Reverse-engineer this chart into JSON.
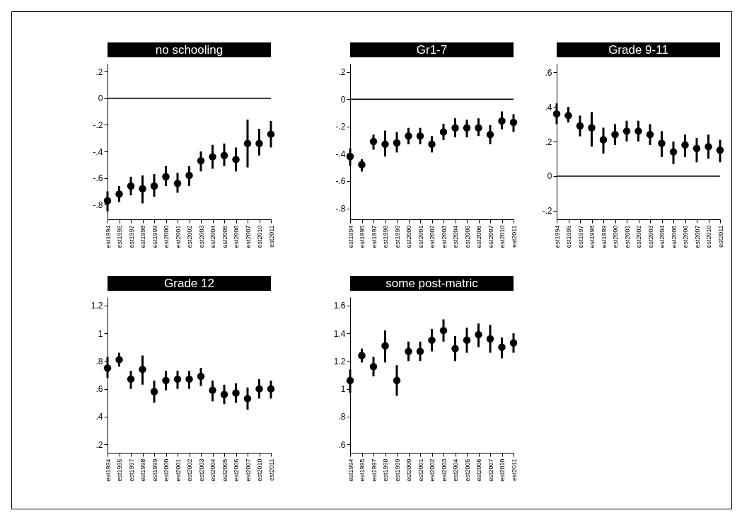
{
  "chart_data": [
    {
      "type": "scatter",
      "title": "no schooling",
      "color": "#000000",
      "marker": "circle",
      "categories": [
        "est1994",
        "est1995",
        "est1997",
        "est1998",
        "est1999",
        "est2000",
        "est2001",
        "est2002",
        "est2003",
        "est2004",
        "est2005",
        "est2006",
        "est2007",
        "est2010",
        "est2011"
      ],
      "values": [
        -0.77,
        -0.72,
        -0.66,
        -0.68,
        -0.66,
        -0.59,
        -0.64,
        -0.58,
        -0.47,
        -0.44,
        -0.43,
        -0.46,
        -0.34,
        -0.34,
        -0.27
      ],
      "errors": [
        [
          -0.85,
          -0.7
        ],
        [
          -0.78,
          -0.66
        ],
        [
          -0.73,
          -0.59
        ],
        [
          -0.79,
          -0.58
        ],
        [
          -0.74,
          -0.57
        ],
        [
          -0.66,
          -0.51
        ],
        [
          -0.71,
          -0.56
        ],
        [
          -0.66,
          -0.51
        ],
        [
          -0.55,
          -0.4
        ],
        [
          -0.53,
          -0.35
        ],
        [
          -0.51,
          -0.34
        ],
        [
          -0.55,
          -0.37
        ],
        [
          -0.52,
          -0.16
        ],
        [
          -0.43,
          -0.23
        ],
        [
          -0.37,
          -0.17
        ]
      ],
      "ylim": [
        -0.91,
        0.26
      ],
      "yticks": [
        {
          "value": -0.8,
          "label": "-.8"
        },
        {
          "value": -0.6,
          "label": "-.6"
        },
        {
          "value": -0.4,
          "label": "-.4"
        },
        {
          "value": -0.2,
          "label": "-.2"
        },
        {
          "value": 0,
          "label": "0"
        },
        {
          "value": 0.2,
          "label": ".2"
        }
      ],
      "ref_lines": [
        {
          "axis": "y",
          "value": 0,
          "color": "#000000"
        }
      ]
    },
    {
      "type": "scatter",
      "title": "Gr1-7",
      "color": "#000000",
      "marker": "circle",
      "categories": [
        "est1994",
        "est1995",
        "est1997",
        "est1998",
        "est1999",
        "est2000",
        "est2001",
        "est2002",
        "est2003",
        "est2004",
        "est2005",
        "est2006",
        "est2007",
        "est2010",
        "est2011"
      ],
      "values": [
        -0.42,
        -0.48,
        -0.31,
        -0.33,
        -0.32,
        -0.27,
        -0.27,
        -0.33,
        -0.24,
        -0.21,
        -0.21,
        -0.21,
        -0.26,
        -0.16,
        -0.17
      ],
      "errors": [
        [
          -0.49,
          -0.36
        ],
        [
          -0.53,
          -0.44
        ],
        [
          -0.37,
          -0.26
        ],
        [
          -0.42,
          -0.23
        ],
        [
          -0.39,
          -0.24
        ],
        [
          -0.33,
          -0.21
        ],
        [
          -0.33,
          -0.21
        ],
        [
          -0.39,
          -0.27
        ],
        [
          -0.3,
          -0.18
        ],
        [
          -0.28,
          -0.14
        ],
        [
          -0.28,
          -0.15
        ],
        [
          -0.27,
          -0.14
        ],
        [
          -0.33,
          -0.19
        ],
        [
          -0.22,
          -0.09
        ],
        [
          -0.24,
          -0.11
        ]
      ],
      "ylim": [
        -0.88,
        0.26
      ],
      "yticks": [
        {
          "value": -0.8,
          "label": "-.8"
        },
        {
          "value": -0.6,
          "label": "-.6"
        },
        {
          "value": -0.4,
          "label": "-.4"
        },
        {
          "value": -0.2,
          "label": "-.2"
        },
        {
          "value": 0,
          "label": "0"
        },
        {
          "value": 0.2,
          "label": ".2"
        }
      ],
      "ref_lines": [
        {
          "axis": "y",
          "value": 0,
          "color": "#000000"
        }
      ]
    },
    {
      "type": "scatter",
      "title": "Grade 9-11",
      "color": "#000000",
      "marker": "circle",
      "categories": [
        "est1994",
        "est1995",
        "est1997",
        "est1998",
        "est1999",
        "est2000",
        "est2001",
        "est2002",
        "est2003",
        "est2004",
        "est2005",
        "est2006",
        "est2007",
        "est2010",
        "est2011"
      ],
      "values": [
        0.36,
        0.35,
        0.29,
        0.28,
        0.21,
        0.24,
        0.26,
        0.26,
        0.24,
        0.19,
        0.14,
        0.18,
        0.16,
        0.17,
        0.15
      ],
      "errors": [
        [
          0.3,
          0.42
        ],
        [
          0.31,
          0.4
        ],
        [
          0.23,
          0.35
        ],
        [
          0.17,
          0.37
        ],
        [
          0.13,
          0.28
        ],
        [
          0.18,
          0.3
        ],
        [
          0.2,
          0.32
        ],
        [
          0.2,
          0.32
        ],
        [
          0.18,
          0.3
        ],
        [
          0.11,
          0.26
        ],
        [
          0.07,
          0.2
        ],
        [
          0.11,
          0.24
        ],
        [
          0.08,
          0.22
        ],
        [
          0.1,
          0.24
        ],
        [
          0.08,
          0.21
        ]
      ],
      "ylim": [
        -0.25,
        0.65
      ],
      "yticks": [
        {
          "value": -0.2,
          "label": "-.2"
        },
        {
          "value": 0,
          "label": "0"
        },
        {
          "value": 0.2,
          "label": ".2"
        },
        {
          "value": 0.4,
          "label": ".4"
        },
        {
          "value": 0.6,
          "label": ".6"
        }
      ],
      "ref_lines": [
        {
          "axis": "y",
          "value": 0,
          "color": "#000000"
        }
      ]
    },
    {
      "type": "scatter",
      "title": "Grade 12",
      "color": "#000000",
      "marker": "circle",
      "categories": [
        "est1994",
        "est1995",
        "est1997",
        "est1998",
        "est1999",
        "est2000",
        "est2001",
        "est2002",
        "est2003",
        "est2004",
        "est2005",
        "est2006",
        "est2007",
        "est2010",
        "est2011"
      ],
      "values": [
        0.75,
        0.81,
        0.67,
        0.74,
        0.58,
        0.66,
        0.67,
        0.67,
        0.69,
        0.59,
        0.56,
        0.57,
        0.53,
        0.6,
        0.6
      ],
      "errors": [
        [
          0.68,
          0.83
        ],
        [
          0.76,
          0.86
        ],
        [
          0.6,
          0.73
        ],
        [
          0.63,
          0.84
        ],
        [
          0.5,
          0.66
        ],
        [
          0.59,
          0.73
        ],
        [
          0.6,
          0.73
        ],
        [
          0.6,
          0.73
        ],
        [
          0.62,
          0.75
        ],
        [
          0.51,
          0.66
        ],
        [
          0.49,
          0.63
        ],
        [
          0.5,
          0.64
        ],
        [
          0.45,
          0.61
        ],
        [
          0.53,
          0.67
        ],
        [
          0.53,
          0.66
        ]
      ],
      "ylim": [
        0.14,
        1.26
      ],
      "yticks": [
        {
          "value": 0.2,
          "label": ".2"
        },
        {
          "value": 0.4,
          "label": ".4"
        },
        {
          "value": 0.6,
          "label": ".6"
        },
        {
          "value": 0.8,
          "label": ".8"
        },
        {
          "value": 1,
          "label": "1"
        },
        {
          "value": 1.2,
          "label": "1.2"
        }
      ]
    },
    {
      "type": "scatter",
      "title": "some post-matric",
      "color": "#000000",
      "marker": "circle",
      "categories": [
        "est1994",
        "est1995",
        "est1997",
        "est1998",
        "est1999",
        "est2000",
        "est2001",
        "est2002",
        "est2003",
        "est2004",
        "est2005",
        "est2006",
        "est2007",
        "est2010",
        "est2011"
      ],
      "values": [
        1.06,
        1.24,
        1.16,
        1.31,
        1.06,
        1.27,
        1.27,
        1.35,
        1.42,
        1.29,
        1.35,
        1.39,
        1.36,
        1.3,
        1.33
      ],
      "errors": [
        [
          0.97,
          1.14
        ],
        [
          1.19,
          1.29
        ],
        [
          1.09,
          1.23
        ],
        [
          1.19,
          1.42
        ],
        [
          0.95,
          1.17
        ],
        [
          1.2,
          1.34
        ],
        [
          1.2,
          1.34
        ],
        [
          1.27,
          1.43
        ],
        [
          1.34,
          1.5
        ],
        [
          1.2,
          1.38
        ],
        [
          1.26,
          1.44
        ],
        [
          1.3,
          1.47
        ],
        [
          1.26,
          1.46
        ],
        [
          1.22,
          1.37
        ],
        [
          1.26,
          1.4
        ]
      ],
      "ylim": [
        0.54,
        1.66
      ],
      "yticks": [
        {
          "value": 0.6,
          "label": ".6"
        },
        {
          "value": 0.8,
          "label": ".8"
        },
        {
          "value": 1,
          "label": "1"
        },
        {
          "value": 1.2,
          "label": "1.2"
        },
        {
          "value": 1.4,
          "label": "1.4"
        },
        {
          "value": 1.6,
          "label": "1.6"
        }
      ]
    }
  ]
}
